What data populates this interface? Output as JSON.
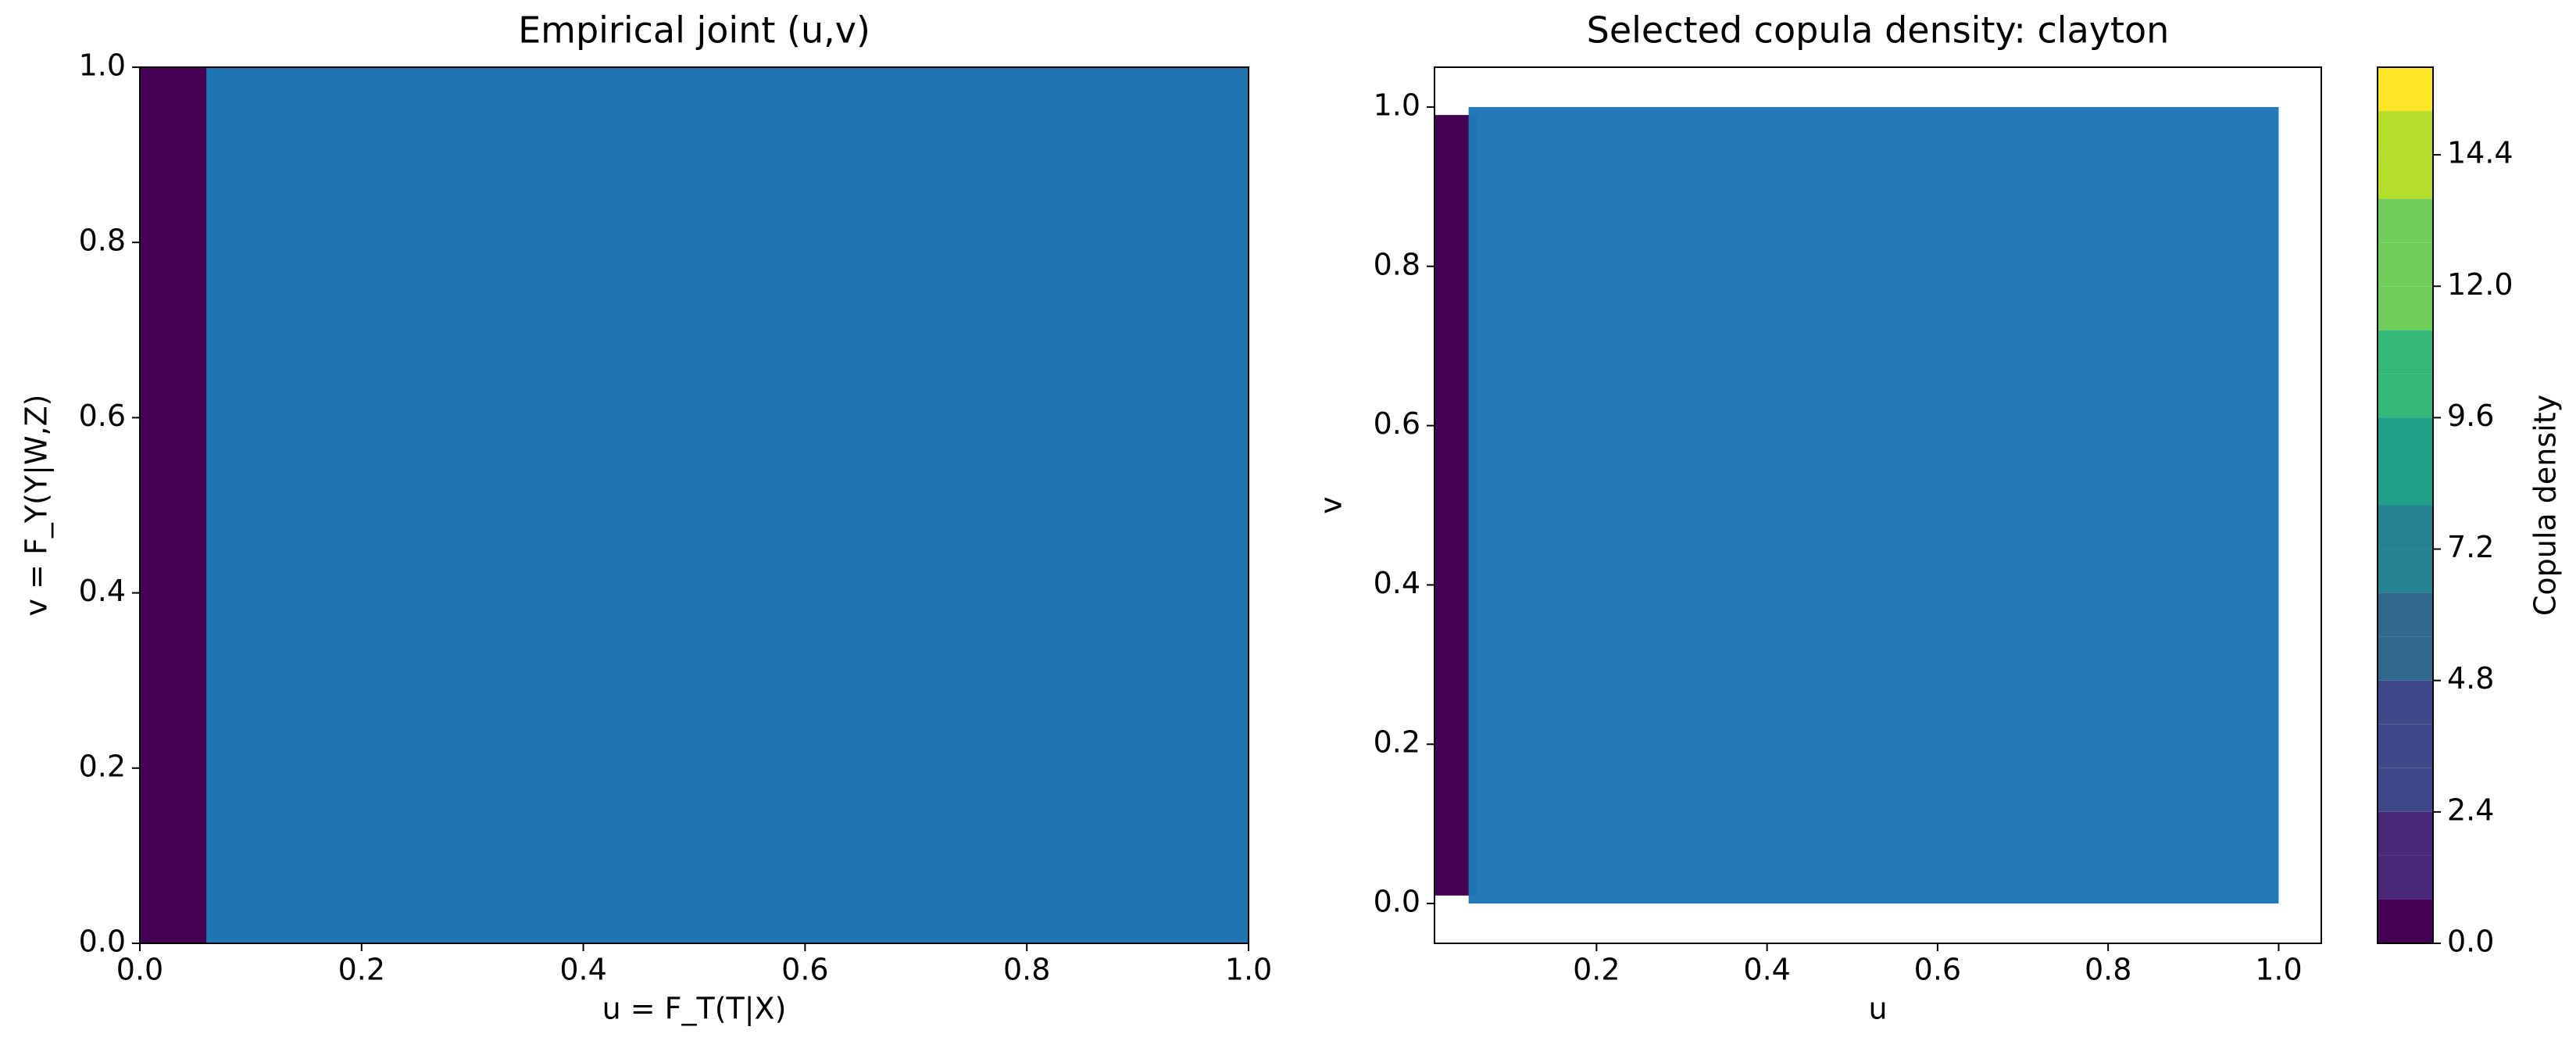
{
  "chart_data": [
    {
      "type": "scatter",
      "title": "Empirical joint (u,v)",
      "x_label": "u = F_T(T|X)",
      "y_label": "v = F_Y(Y|W,Z)",
      "xlim": [
        0,
        1
      ],
      "ylim": [
        0,
        1
      ],
      "xticks": [
        {
          "value": 0,
          "label": "0.0"
        },
        0.2,
        0.4,
        0.6,
        0.8,
        {
          "value": 1,
          "label": "1.0"
        }
      ],
      "yticks": [
        {
          "value": 0,
          "label": "0.0"
        },
        0.2,
        0.4,
        0.6,
        0.8,
        {
          "value": 1,
          "label": "1.0"
        }
      ],
      "background": "#440154",
      "density_region": {
        "x": [
          0,
          1
        ],
        "y": [
          0,
          1
        ],
        "color": "#440154"
      },
      "points": {
        "x": [
          0.06,
          1.0
        ],
        "y": [
          0,
          1
        ],
        "color": "#1f77b4"
      }
    },
    {
      "type": "scatter",
      "title": "Selected copula density: clayton",
      "x_label": "u",
      "y_label": "v",
      "xlim": [
        0.01,
        1.05
      ],
      "ylim": [
        -0.05,
        1.05
      ],
      "xticks": [
        0.2,
        0.4,
        0.6,
        0.8,
        {
          "value": 1,
          "label": "1.0"
        }
      ],
      "yticks": [
        {
          "value": 0,
          "label": "0.0"
        },
        0.2,
        0.4,
        0.6,
        0.8,
        {
          "value": 1,
          "label": "1.0"
        }
      ],
      "background": "#ffffff",
      "density_region": {
        "x": [
          0.01,
          0.06
        ],
        "y": [
          0.01,
          0.99
        ],
        "color": "#440154"
      },
      "points": {
        "x": [
          0.05,
          1.0
        ],
        "y": [
          0,
          1
        ],
        "color": "#1f77b4"
      },
      "colorbar": {
        "label": "Copula density",
        "colormap": "viridis",
        "clim": [
          0,
          16
        ],
        "levels": [
          0,
          0.8,
          1.6,
          2.4,
          3.2,
          4.0,
          4.8,
          5.6,
          6.4,
          7.2,
          8.0,
          8.8,
          9.6,
          10.4,
          11.2,
          12.0,
          12.8,
          13.6,
          14.4,
          15.2,
          16.0
        ],
        "ticks": [
          {
            "value": 0,
            "label": "0.0"
          },
          2.4,
          4.8,
          7.2,
          9.6,
          {
            "value": 12,
            "label": "12.0"
          },
          14.4
        ]
      }
    }
  ]
}
